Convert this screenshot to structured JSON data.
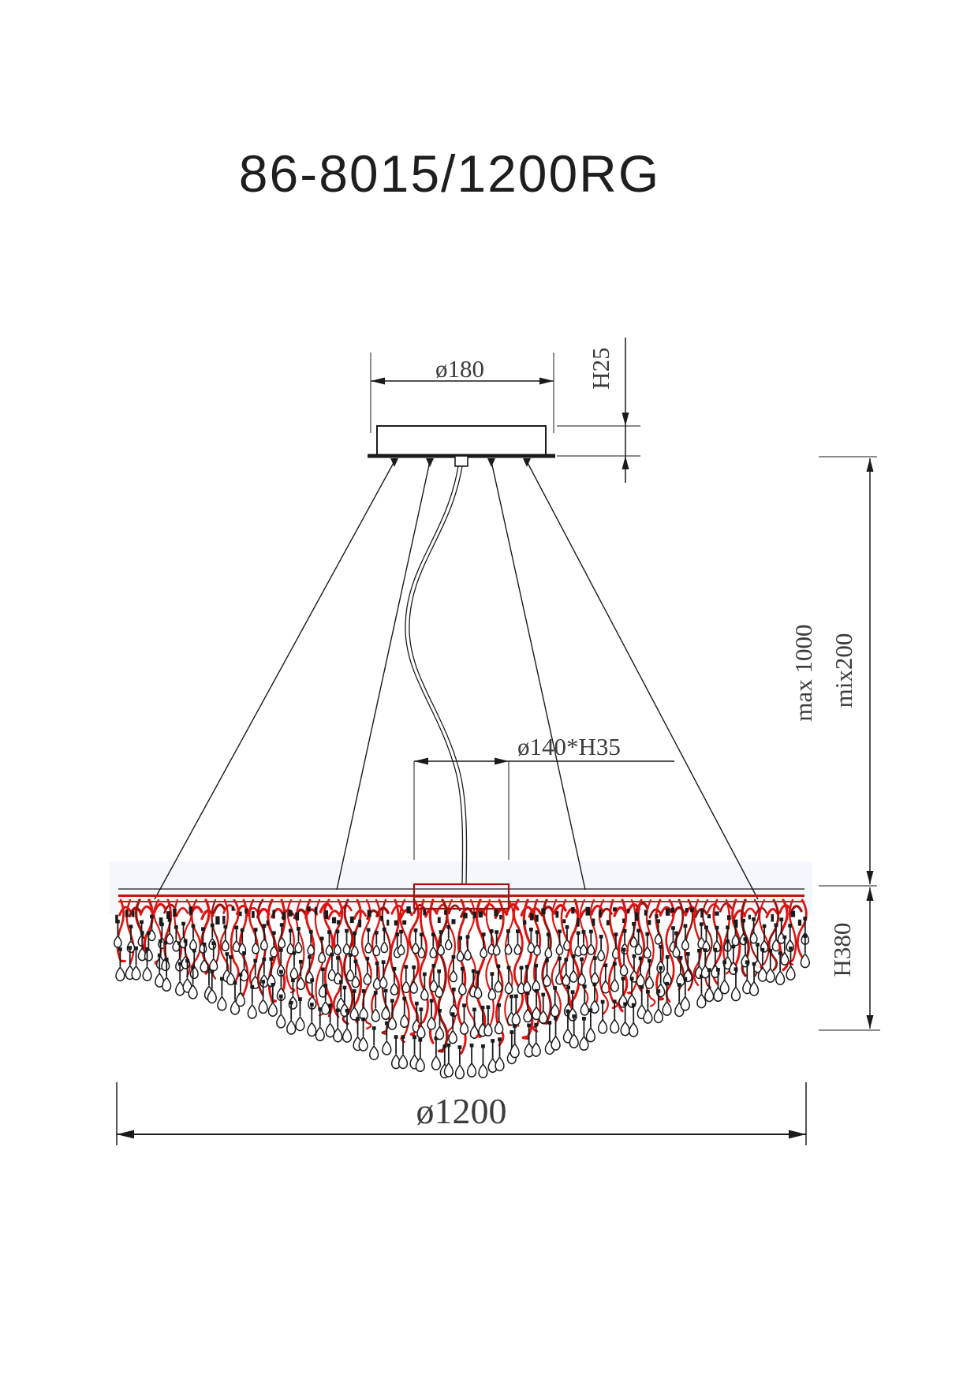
{
  "title": "86-8015/1200RG",
  "drawing": {
    "description": "Chandelier pendant technical dimension drawing",
    "colors": {
      "accent_red": "#df1310",
      "dark_red": "#9c120e",
      "line": "#1a1a1a",
      "dim_text": "#3c3c3c",
      "tint": "#e9eff7"
    },
    "dims": {
      "canopy_diameter": "ø180",
      "canopy_height": "H25",
      "cable_max": "max 1000",
      "cable_min": "mix200",
      "hub_size": "ø140*H35",
      "body_height": "H380",
      "body_diameter": "ø1200"
    }
  }
}
